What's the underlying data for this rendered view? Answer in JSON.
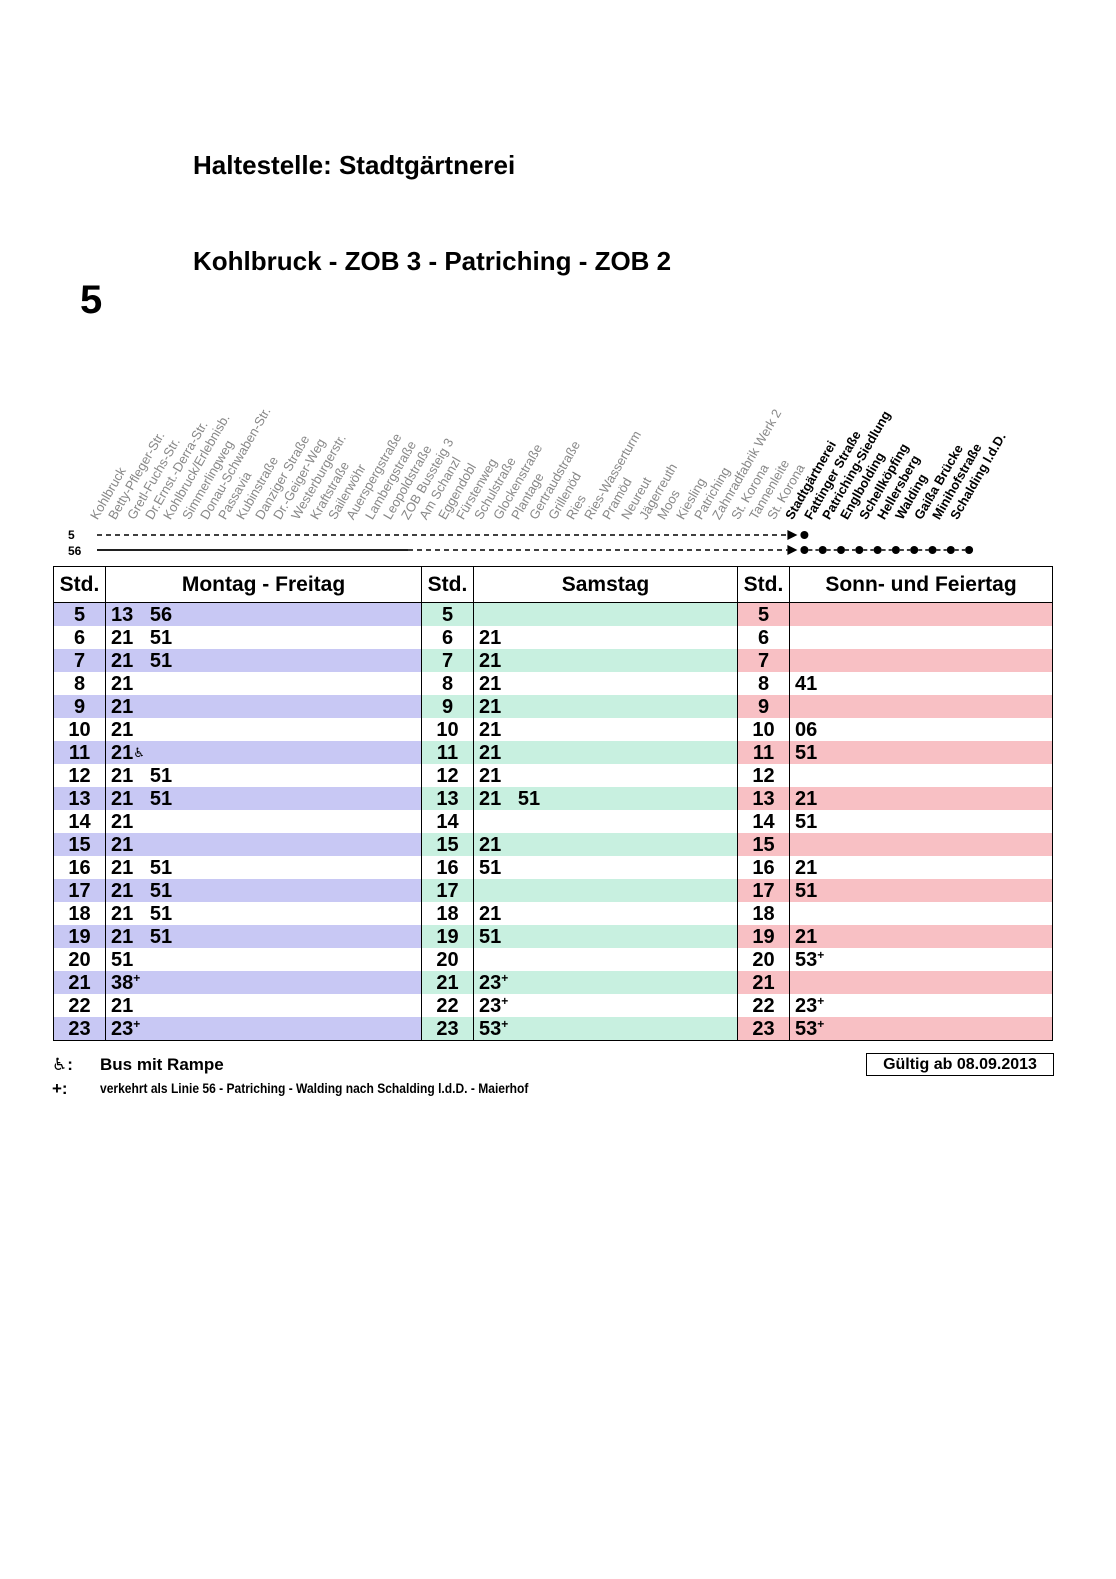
{
  "header": {
    "stop_title": "Haltestelle: Stadtgärtnerei",
    "route_title": "Kohlbruck - ZOB 3 - Patriching - ZOB 2",
    "line_number": "5"
  },
  "route_diagram": {
    "lines": [
      "5",
      "56"
    ],
    "stops": [
      {
        "name": "Kohlbruck",
        "bold": false
      },
      {
        "name": "Betty-Pfleger-Str.",
        "bold": false
      },
      {
        "name": "Gretl-Fuchs-Str.",
        "bold": false
      },
      {
        "name": "Dr.Ernst.-Derra-Str.",
        "bold": false
      },
      {
        "name": "Kohlbruck/Erlebnisb.",
        "bold": false
      },
      {
        "name": "Simmerlingweg",
        "bold": false
      },
      {
        "name": "Donau-Schwaben-Str.",
        "bold": false
      },
      {
        "name": "Passavia",
        "bold": false
      },
      {
        "name": "Kubinstraße",
        "bold": false
      },
      {
        "name": "Danziger Straße",
        "bold": false
      },
      {
        "name": "Dr.-Geiger-Weg",
        "bold": false
      },
      {
        "name": "Westerburgerstr.",
        "bold": false
      },
      {
        "name": "Kraftstraße",
        "bold": false
      },
      {
        "name": "Sailerwöhr",
        "bold": false
      },
      {
        "name": "Auerspergstraße",
        "bold": false
      },
      {
        "name": "Lambergstraße",
        "bold": false
      },
      {
        "name": "Leopoldstraße",
        "bold": false
      },
      {
        "name": "ZOB Bussteig 3",
        "bold": false
      },
      {
        "name": "Am Schanzl",
        "bold": false
      },
      {
        "name": "Eggendobl",
        "bold": false
      },
      {
        "name": "Fürstenweg",
        "bold": false
      },
      {
        "name": "Schulstraße",
        "bold": false
      },
      {
        "name": "Glockenstraße",
        "bold": false
      },
      {
        "name": "Plantage",
        "bold": false
      },
      {
        "name": "Gertraudstraße",
        "bold": false
      },
      {
        "name": "Grillenöd",
        "bold": false
      },
      {
        "name": "Ries",
        "bold": false
      },
      {
        "name": "Ries-Wasserturm",
        "bold": false
      },
      {
        "name": "Pramöd",
        "bold": false
      },
      {
        "name": "Neureut",
        "bold": false
      },
      {
        "name": "Jägerreuth",
        "bold": false
      },
      {
        "name": "Moos",
        "bold": false
      },
      {
        "name": "Kiesling",
        "bold": false
      },
      {
        "name": "Patriching",
        "bold": false
      },
      {
        "name": "Zahnradfabrik Werk 2",
        "bold": false
      },
      {
        "name": "St. Korona",
        "bold": false
      },
      {
        "name": "Tannenleite",
        "bold": false
      },
      {
        "name": "St. Korona",
        "bold": false
      },
      {
        "name": "Stadtgärtnerei",
        "bold": true
      },
      {
        "name": "Fattinger Straße",
        "bold": true
      },
      {
        "name": "Patriching-Siedlung",
        "bold": true
      },
      {
        "name": "Englbolding",
        "bold": true
      },
      {
        "name": "Schellköpfing",
        "bold": true
      },
      {
        "name": "Hellersberg",
        "bold": true
      },
      {
        "name": "Walding",
        "bold": true
      },
      {
        "name": "Gaißa Brücke",
        "bold": true
      },
      {
        "name": "Minihofstraße",
        "bold": true
      },
      {
        "name": "Schalding l.d.D.",
        "bold": true
      }
    ]
  },
  "table": {
    "headers": {
      "std": "Std.",
      "weekday": "Montag - Freitag",
      "saturday": "Samstag",
      "sunday": "Sonn- und Feiertag"
    },
    "rows": [
      {
        "hour": "5",
        "mf": "13   56",
        "sa": "",
        "so": ""
      },
      {
        "hour": "6",
        "mf": "21   51",
        "sa": "21",
        "so": ""
      },
      {
        "hour": "7",
        "mf": "21   51",
        "sa": "21",
        "so": ""
      },
      {
        "hour": "8",
        "mf": "21",
        "sa": "21",
        "so": "41"
      },
      {
        "hour": "9",
        "mf": "21",
        "sa": "21",
        "so": ""
      },
      {
        "hour": "10",
        "mf": "21",
        "sa": "21",
        "so": "06"
      },
      {
        "hour": "11",
        "mf": "21",
        "sa": "21",
        "so": "51",
        "mf_ramp": true
      },
      {
        "hour": "12",
        "mf": "21   51",
        "sa": "21",
        "so": ""
      },
      {
        "hour": "13",
        "mf": "21   51",
        "sa": "21   51",
        "so": "21"
      },
      {
        "hour": "14",
        "mf": "21",
        "sa": "",
        "so": "51"
      },
      {
        "hour": "15",
        "mf": "21",
        "sa": "21",
        "so": ""
      },
      {
        "hour": "16",
        "mf": "21   51",
        "sa": "51",
        "so": "21"
      },
      {
        "hour": "17",
        "mf": "21   51",
        "sa": "",
        "so": "51"
      },
      {
        "hour": "18",
        "mf": "21   51",
        "sa": "21",
        "so": ""
      },
      {
        "hour": "19",
        "mf": "21   51",
        "sa": "51",
        "so": "21"
      },
      {
        "hour": "20",
        "mf": "51",
        "sa": "",
        "so": "53",
        "so_plus": true
      },
      {
        "hour": "21",
        "mf": "38",
        "mf_plus": true,
        "sa": "23",
        "sa_plus": true,
        "so": ""
      },
      {
        "hour": "22",
        "mf": "21",
        "sa": "23",
        "sa_plus": true,
        "so": "23",
        "so_plus": true
      },
      {
        "hour": "23",
        "mf": "23",
        "mf_plus": true,
        "sa": "53",
        "sa_plus": true,
        "so": "53",
        "so_plus": true
      }
    ]
  },
  "legend": {
    "ramp_symbol": "♿:",
    "ramp_text": "Bus mit Rampe",
    "plus_symbol": "+:",
    "plus_text": "verkehrt als Linie 56 - Patriching - Walding nach Schalding l.d.D. - Maierhof",
    "validity": "Gültig ab 08.09.2013"
  }
}
